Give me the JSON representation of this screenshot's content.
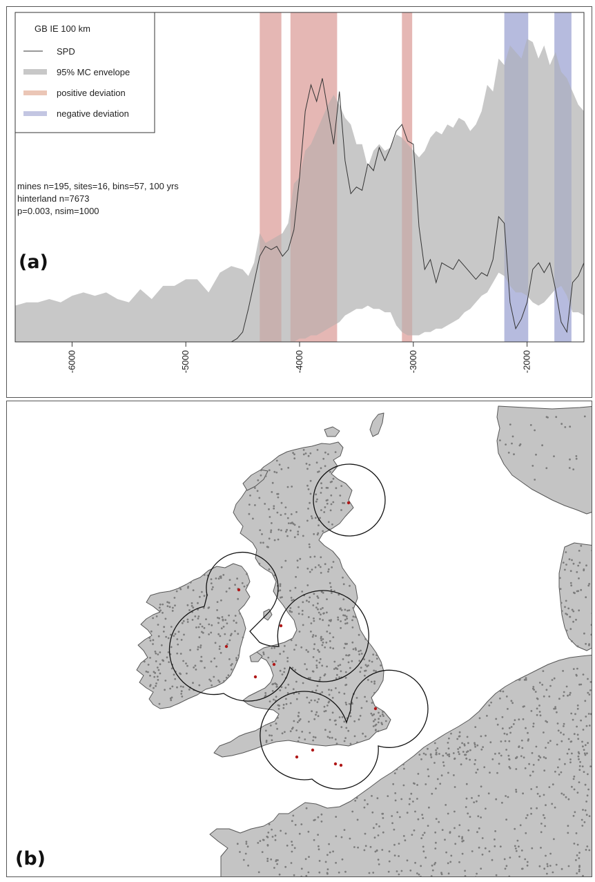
{
  "chart_data": {
    "type": "area",
    "legend": {
      "title": "GB IE 100 km",
      "placement": "top-left",
      "entries": [
        {
          "label": "SPD",
          "color": "#333333",
          "style": "line"
        },
        {
          "label": "95% MC envelope",
          "color": "#c8c8c8",
          "style": "band"
        },
        {
          "label": "positive deviation",
          "color": "#e8c0b0",
          "style": "band"
        },
        {
          "label": "negative deviation",
          "color": "#c3c6e2",
          "style": "band"
        }
      ]
    },
    "stats": [
      "mines n=195, sites=16, bins=57, 100 yrs",
      "hinterland n=7673",
      "p=0.003, nsim=1000"
    ],
    "panel_label": "(a)",
    "xaxis": {
      "range": [
        -6500,
        -1500
      ],
      "ticks": [
        -6000,
        -5000,
        -4000,
        -3000,
        -2000
      ],
      "tick_labels": [
        "-6000",
        "-5000",
        "-4000",
        "-3000",
        "-2000"
      ]
    },
    "yaxis": {
      "range": [
        0,
        1
      ]
    },
    "grid": false,
    "deviations": [
      {
        "type": "positive",
        "from": -4350,
        "to": -4160
      },
      {
        "type": "positive",
        "from": -4080,
        "to": -3670
      },
      {
        "type": "positive",
        "from": -3100,
        "to": -3010
      },
      {
        "type": "negative",
        "from": -2200,
        "to": -1990
      },
      {
        "type": "negative",
        "from": -1760,
        "to": -1610
      }
    ],
    "envelope_x": [
      -6500,
      -6400,
      -6300,
      -6200,
      -6100,
      -6000,
      -5900,
      -5800,
      -5700,
      -5600,
      -5500,
      -5400,
      -5300,
      -5200,
      -5100,
      -5000,
      -4900,
      -4800,
      -4700,
      -4600,
      -4500,
      -4450,
      -4400,
      -4350,
      -4300,
      -4250,
      -4200,
      -4150,
      -4100,
      -4050,
      -4000,
      -3950,
      -3900,
      -3850,
      -3800,
      -3750,
      -3700,
      -3650,
      -3600,
      -3550,
      -3500,
      -3450,
      -3400,
      -3350,
      -3300,
      -3250,
      -3200,
      -3150,
      -3100,
      -3050,
      -3000,
      -2950,
      -2900,
      -2850,
      -2800,
      -2750,
      -2700,
      -2650,
      -2600,
      -2550,
      -2500,
      -2450,
      -2400,
      -2350,
      -2300,
      -2250,
      -2200,
      -2150,
      -2100,
      -2050,
      -2000,
      -1950,
      -1900,
      -1850,
      -1800,
      -1750,
      -1700,
      -1650,
      -1600,
      -1550,
      -1500
    ],
    "envelope_low": [
      0,
      0,
      0,
      0,
      0,
      0,
      0,
      0,
      0,
      0,
      0,
      0,
      0,
      0,
      0,
      0,
      0,
      0,
      0,
      0,
      0,
      0,
      0,
      0,
      0,
      0,
      0,
      0,
      0,
      0,
      0.01,
      0.01,
      0.02,
      0.02,
      0.03,
      0.04,
      0.05,
      0.06,
      0.08,
      0.09,
      0.1,
      0.1,
      0.11,
      0.1,
      0.1,
      0.09,
      0.09,
      0.05,
      0.03,
      0.02,
      0.02,
      0.02,
      0.03,
      0.03,
      0.04,
      0.04,
      0.05,
      0.06,
      0.07,
      0.09,
      0.1,
      0.12,
      0.14,
      0.15,
      0.18,
      0.21,
      0.2,
      0.17,
      0.15,
      0.15,
      0.14,
      0.12,
      0.11,
      0.12,
      0.14,
      0.16,
      0.17,
      0.14,
      0.09,
      0.09,
      0.08
    ],
    "envelope_high": [
      0.11,
      0.12,
      0.12,
      0.13,
      0.12,
      0.14,
      0.15,
      0.14,
      0.15,
      0.13,
      0.12,
      0.16,
      0.13,
      0.17,
      0.17,
      0.19,
      0.19,
      0.15,
      0.21,
      0.23,
      0.22,
      0.2,
      0.24,
      0.33,
      0.3,
      0.31,
      0.32,
      0.33,
      0.36,
      0.48,
      0.5,
      0.58,
      0.6,
      0.64,
      0.68,
      0.72,
      0.75,
      0.72,
      0.68,
      0.66,
      0.6,
      0.6,
      0.53,
      0.58,
      0.6,
      0.58,
      0.59,
      0.63,
      0.62,
      0.6,
      0.58,
      0.56,
      0.58,
      0.62,
      0.64,
      0.63,
      0.66,
      0.65,
      0.68,
      0.67,
      0.64,
      0.66,
      0.7,
      0.78,
      0.76,
      0.86,
      0.84,
      0.9,
      0.88,
      0.86,
      0.92,
      0.91,
      0.86,
      0.9,
      0.84,
      0.88,
      0.82,
      0.8,
      0.76,
      0.72,
      0.7
    ],
    "spd_x": [
      -6500,
      -4600,
      -4550,
      -4500,
      -4450,
      -4400,
      -4350,
      -4300,
      -4250,
      -4200,
      -4150,
      -4100,
      -4050,
      -4000,
      -3950,
      -3900,
      -3850,
      -3800,
      -3750,
      -3700,
      -3650,
      -3600,
      -3550,
      -3500,
      -3450,
      -3400,
      -3350,
      -3300,
      -3250,
      -3200,
      -3150,
      -3100,
      -3050,
      -3000,
      -2950,
      -2900,
      -2850,
      -2800,
      -2750,
      -2700,
      -2650,
      -2600,
      -2550,
      -2500,
      -2450,
      -2400,
      -2350,
      -2300,
      -2250,
      -2200,
      -2150,
      -2100,
      -2050,
      -2000,
      -1950,
      -1900,
      -1850,
      -1800,
      -1750,
      -1700,
      -1650,
      -1600,
      -1550,
      -1500
    ],
    "spd_y": [
      0,
      0,
      0.01,
      0.03,
      0.1,
      0.18,
      0.26,
      0.29,
      0.28,
      0.29,
      0.26,
      0.28,
      0.34,
      0.5,
      0.7,
      0.78,
      0.73,
      0.8,
      0.7,
      0.6,
      0.76,
      0.55,
      0.45,
      0.47,
      0.46,
      0.54,
      0.52,
      0.59,
      0.55,
      0.59,
      0.64,
      0.66,
      0.61,
      0.6,
      0.35,
      0.22,
      0.25,
      0.18,
      0.24,
      0.23,
      0.22,
      0.25,
      0.23,
      0.21,
      0.19,
      0.21,
      0.2,
      0.25,
      0.38,
      0.36,
      0.12,
      0.04,
      0.07,
      0.12,
      0.22,
      0.24,
      0.21,
      0.24,
      0.16,
      0.06,
      0.03,
      0.18,
      0.2,
      0.24
    ]
  },
  "map_data": {
    "panel_label": "(b)",
    "buffer_radius": "100 km",
    "mine_count": 16
  }
}
